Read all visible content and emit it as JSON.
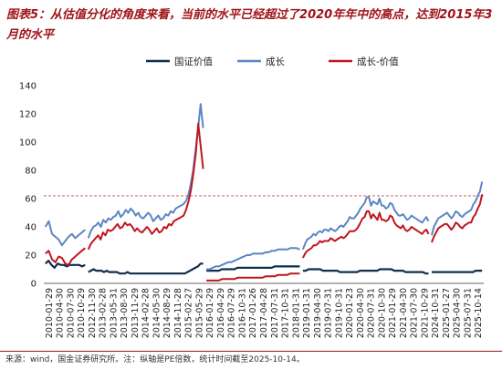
{
  "figure_title": "图表5：从估值分化的角度来看，当前的水平已经超过了2020年年中的高点，达到2015年3月的水平",
  "source_note": "来源：wind，国金证券研究所。注：纵轴是PE倍数，统计时间截至2025-10-14。",
  "colors": {
    "title": "#a01318",
    "guozheng": "#0f2f4e",
    "growth": "#5b86c3",
    "spread": "#c0161f",
    "refline": "#d04848"
  },
  "chart_data": {
    "type": "line",
    "title": "",
    "xlabel": "",
    "ylabel": "",
    "ylim": [
      0,
      140
    ],
    "yticks": [
      0,
      20,
      40,
      60,
      80,
      100,
      120,
      140
    ],
    "reference_line": {
      "y": 62,
      "style": "dashed"
    },
    "legend_placement": "top",
    "x_tick_labels": [
      "2010-01-29",
      "2010-04-30",
      "2010-07-30",
      "2010-10-29",
      "2012-11-30",
      "2013-02-28",
      "2013-05-31",
      "2013-08-30",
      "2013-11-29",
      "2014-02-28",
      "2014-05-30",
      "2014-08-29",
      "2014-11-28",
      "2015-02-27",
      "2015-05-29",
      "2016-01-29",
      "2016-04-29",
      "2016-07-29",
      "2016-10-31",
      "2017-01-26",
      "2017-04-28",
      "2017-07-31",
      "2017-10-31",
      "2018-01-31",
      "2019-01-31",
      "2019-04-30",
      "2019-07-31",
      "2019-10-31",
      "2020-01-23",
      "2020-04-30",
      "2020-07-31",
      "2020-10-30",
      "2021-01-29",
      "2021-04-30",
      "2021-07-30",
      "2021-10-29",
      "2024-10-31",
      "2025-01-27",
      "2025-04-30",
      "2025-07-31",
      "2025-10-14"
    ],
    "segments": [
      {
        "start": 0,
        "end": 3
      },
      {
        "start": 4,
        "end": 14
      },
      {
        "start": 15,
        "end": 23
      },
      {
        "start": 24,
        "end": 35
      },
      {
        "start": 36,
        "end": 40
      }
    ],
    "series": [
      {
        "name": "国证价值",
        "key": "guozheng",
        "values": [
          [
            14,
            16,
            13,
            11,
            14,
            13,
            13,
            12,
            13,
            13,
            13,
            13,
            12,
            13
          ],
          [
            8,
            9,
            10,
            9,
            9,
            9,
            8,
            9,
            8,
            8,
            8,
            8,
            7,
            7,
            7,
            8,
            7,
            7,
            7,
            7,
            7,
            7,
            7,
            7,
            7,
            7,
            7,
            7,
            7,
            7,
            7,
            7,
            7,
            7,
            7,
            7,
            7,
            7,
            8,
            9,
            10,
            11,
            12,
            14,
            14
          ],
          [
            9,
            9,
            9,
            9,
            9,
            10,
            10,
            10,
            10,
            10,
            11,
            11,
            11,
            11,
            11,
            11,
            11,
            11,
            11,
            11,
            11,
            11,
            12,
            12,
            12,
            12,
            12,
            12,
            12,
            12,
            12
          ],
          [
            9,
            9,
            10,
            10,
            10,
            10,
            10,
            9,
            9,
            9,
            9,
            9,
            9,
            8,
            8,
            8,
            8,
            8,
            8,
            8,
            9,
            9,
            9,
            9,
            9,
            9,
            9,
            10,
            10,
            10,
            10,
            10,
            9,
            9,
            9,
            9,
            8,
            8,
            8,
            8,
            8,
            8,
            8,
            7,
            7
          ],
          [
            8,
            8,
            8,
            8,
            8,
            8,
            8,
            8,
            8,
            8,
            8,
            8,
            8,
            8,
            8,
            8,
            8,
            8,
            8,
            8,
            9,
            9,
            9,
            9
          ]
        ]
      },
      {
        "name": "成长",
        "key": "growth",
        "values": [
          [
            40,
            44,
            35,
            33,
            31,
            27,
            30,
            33,
            35,
            32,
            34,
            36,
            38
          ],
          [
            32,
            37,
            40,
            41,
            43,
            40,
            45,
            43,
            46,
            45,
            47,
            48,
            51,
            47,
            49,
            52,
            50,
            53,
            51,
            48,
            50,
            47,
            46,
            48,
            50,
            48,
            44,
            46,
            48,
            45,
            46,
            49,
            48,
            51,
            50,
            53,
            54,
            55,
            56,
            58,
            62,
            70,
            80,
            95,
            110,
            127,
            110
          ],
          [
            10,
            10,
            11,
            12,
            12,
            13,
            14,
            15,
            15,
            16,
            17,
            18,
            19,
            20,
            20,
            21,
            21,
            21,
            21,
            22,
            22,
            23,
            23,
            24,
            24,
            24,
            24,
            25,
            25,
            25,
            24
          ],
          [
            24,
            28,
            31,
            32,
            33,
            35,
            34,
            36,
            37,
            36,
            38,
            38,
            37,
            39,
            38,
            37,
            38,
            40,
            41,
            40,
            42,
            44,
            47,
            46,
            46,
            48,
            50,
            53,
            55,
            57,
            61,
            61,
            55,
            58,
            57,
            56,
            60,
            55,
            55,
            53,
            54,
            57,
            56,
            52,
            50,
            48,
            48,
            49,
            47,
            45,
            46,
            48,
            47,
            46,
            45,
            44,
            43,
            45,
            47,
            44
          ],
          [
            34,
            40,
            43,
            46,
            47,
            48,
            49,
            50,
            48,
            46,
            48,
            51,
            50,
            48,
            47,
            49,
            50,
            51,
            52,
            56,
            58,
            62,
            65,
            72
          ]
        ]
      },
      {
        "name": "成长-价值",
        "key": "spread",
        "values": [
          [
            21,
            23,
            17,
            15,
            19,
            18,
            14,
            13,
            17,
            19,
            21,
            23,
            25
          ],
          [
            24,
            28,
            30,
            32,
            34,
            31,
            36,
            34,
            38,
            37,
            38,
            40,
            42,
            39,
            40,
            43,
            41,
            42,
            40,
            37,
            39,
            37,
            36,
            38,
            40,
            38,
            35,
            37,
            39,
            36,
            37,
            40,
            39,
            42,
            41,
            44,
            45,
            46,
            47,
            48,
            52,
            58,
            66,
            78,
            92,
            113,
            97,
            81
          ],
          [
            2,
            2,
            2,
            2,
            2,
            3,
            3,
            3,
            3,
            3,
            4,
            4,
            4,
            4,
            4,
            4,
            4,
            4,
            4,
            5,
            5,
            5,
            5,
            6,
            6,
            6,
            6,
            7,
            7,
            7,
            7
          ],
          [
            18,
            21,
            23,
            24,
            25,
            27,
            27,
            28,
            30,
            29,
            30,
            30,
            30,
            32,
            31,
            30,
            31,
            32,
            33,
            32,
            33,
            35,
            37,
            37,
            37,
            38,
            40,
            43,
            46,
            47,
            51,
            51,
            46,
            49,
            47,
            45,
            50,
            45,
            45,
            44,
            45,
            48,
            47,
            43,
            41,
            40,
            39,
            41,
            38,
            37,
            38,
            40,
            39,
            38,
            37,
            36,
            35,
            37,
            38,
            35
          ],
          [
            29,
            33,
            36,
            39,
            40,
            41,
            42,
            42,
            40,
            38,
            40,
            43,
            42,
            40,
            39,
            41,
            42,
            43,
            43,
            47,
            49,
            53,
            56,
            63
          ]
        ]
      }
    ]
  }
}
